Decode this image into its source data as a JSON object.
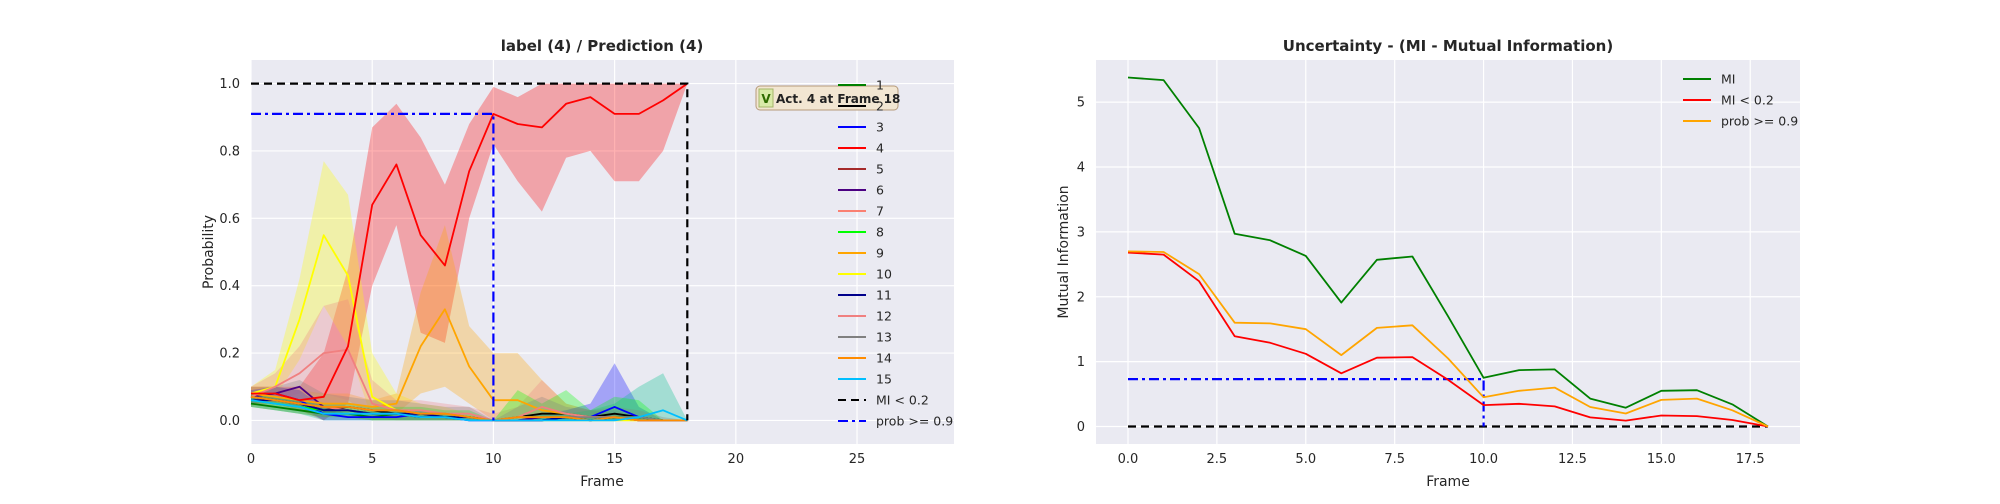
{
  "chart_data": [
    {
      "type": "line",
      "title": "label (4) / Prediction (4)",
      "xlabel": "Frame",
      "ylabel": "Probability",
      "xlim": [
        0,
        29
      ],
      "ylim": [
        -0.07,
        1.07
      ],
      "xticks": [
        0,
        5,
        10,
        15,
        20,
        25
      ],
      "yticks": [
        0.0,
        0.2,
        0.4,
        0.6,
        0.8,
        1.0
      ],
      "xtick_labels": [
        "0",
        "5",
        "10",
        "15",
        "20",
        "25"
      ],
      "ytick_labels": [
        "0.0",
        "0.2",
        "0.4",
        "0.6",
        "0.8",
        "1.0"
      ],
      "grid": true,
      "legend_position": "right",
      "x": [
        0,
        1,
        2,
        3,
        4,
        5,
        6,
        7,
        8,
        9,
        10,
        11,
        12,
        13,
        14,
        15,
        16,
        17,
        18
      ],
      "series": [
        {
          "name": "1",
          "color": "#008000",
          "values": [
            0.05,
            0.04,
            0.03,
            0.02,
            0.02,
            0.01,
            0.02,
            0.01,
            0.01,
            0.01,
            0.0,
            0.0,
            0.0,
            0.01,
            0.0,
            0.01,
            0.01,
            0.0,
            0.0
          ]
        },
        {
          "name": "2",
          "color": "#000000",
          "values": [
            0.07,
            0.06,
            0.05,
            0.03,
            0.04,
            0.03,
            0.02,
            0.02,
            0.02,
            0.01,
            0.0,
            0.01,
            0.02,
            0.02,
            0.01,
            0.02,
            0.01,
            0.0,
            0.0
          ]
        },
        {
          "name": "3",
          "color": "#0000ff",
          "values": [
            0.07,
            0.08,
            0.06,
            0.02,
            0.01,
            0.01,
            0.01,
            0.02,
            0.01,
            0.0,
            0.0,
            0.0,
            0.0,
            0.01,
            0.01,
            0.04,
            0.01,
            0.0,
            0.0
          ]
        },
        {
          "name": "4",
          "color": "#ff0000",
          "values": [
            0.08,
            0.08,
            0.06,
            0.07,
            0.22,
            0.64,
            0.76,
            0.55,
            0.46,
            0.74,
            0.91,
            0.88,
            0.87,
            0.94,
            0.96,
            0.91,
            0.91,
            0.95,
            1.0
          ]
        },
        {
          "name": "5",
          "color": "#a52a2a",
          "values": [
            0.07,
            0.06,
            0.05,
            0.03,
            0.03,
            0.02,
            0.02,
            0.02,
            0.01,
            0.01,
            0.0,
            0.0,
            0.01,
            0.01,
            0.01,
            0.01,
            0.0,
            0.0,
            0.0
          ]
        },
        {
          "name": "6",
          "color": "#4b0082",
          "values": [
            0.07,
            0.08,
            0.1,
            0.04,
            0.03,
            0.02,
            0.02,
            0.01,
            0.01,
            0.01,
            0.0,
            0.0,
            0.01,
            0.01,
            0.01,
            0.01,
            0.0,
            0.0,
            0.0
          ]
        },
        {
          "name": "7",
          "color": "#fa8072",
          "values": [
            0.06,
            0.06,
            0.05,
            0.04,
            0.03,
            0.02,
            0.02,
            0.02,
            0.02,
            0.01,
            0.0,
            0.01,
            0.01,
            0.01,
            0.01,
            0.01,
            0.0,
            0.0,
            0.0
          ]
        },
        {
          "name": "8",
          "color": "#00ff00",
          "values": [
            0.06,
            0.05,
            0.04,
            0.03,
            0.03,
            0.02,
            0.02,
            0.02,
            0.01,
            0.01,
            0.0,
            0.01,
            0.01,
            0.01,
            0.0,
            0.01,
            0.01,
            0.0,
            0.0
          ]
        },
        {
          "name": "9",
          "color": "#ffa500",
          "values": [
            0.08,
            0.07,
            0.06,
            0.05,
            0.05,
            0.04,
            0.05,
            0.22,
            0.33,
            0.16,
            0.06,
            0.06,
            0.03,
            0.02,
            0.01,
            0.01,
            0.0,
            0.0,
            0.0
          ]
        },
        {
          "name": "10",
          "color": "#ffff00",
          "values": [
            0.08,
            0.1,
            0.3,
            0.55,
            0.43,
            0.07,
            0.03,
            0.02,
            0.02,
            0.01,
            0.0,
            0.0,
            0.0,
            0.0,
            0.0,
            0.0,
            0.0,
            0.0,
            0.0
          ]
        },
        {
          "name": "11",
          "color": "#00008b",
          "values": [
            0.06,
            0.06,
            0.05,
            0.03,
            0.03,
            0.02,
            0.02,
            0.02,
            0.01,
            0.01,
            0.0,
            0.0,
            0.0,
            0.01,
            0.0,
            0.01,
            0.0,
            0.0,
            0.0
          ]
        },
        {
          "name": "12",
          "color": "#f08080",
          "values": [
            0.07,
            0.1,
            0.14,
            0.2,
            0.21,
            0.05,
            0.03,
            0.03,
            0.02,
            0.02,
            0.0,
            0.01,
            0.04,
            0.02,
            0.01,
            0.01,
            0.0,
            0.0,
            0.0
          ]
        },
        {
          "name": "13",
          "color": "#808080",
          "values": [
            0.07,
            0.06,
            0.05,
            0.04,
            0.04,
            0.03,
            0.03,
            0.02,
            0.02,
            0.01,
            0.0,
            0.01,
            0.01,
            0.01,
            0.01,
            0.01,
            0.01,
            0.0,
            0.0
          ]
        },
        {
          "name": "14",
          "color": "#ff8c00",
          "values": [
            0.07,
            0.06,
            0.05,
            0.04,
            0.04,
            0.03,
            0.03,
            0.02,
            0.02,
            0.01,
            0.0,
            0.01,
            0.01,
            0.01,
            0.0,
            0.01,
            0.0,
            0.0,
            0.0
          ]
        },
        {
          "name": "15",
          "color": "#00bfff",
          "values": [
            0.06,
            0.05,
            0.04,
            0.02,
            0.02,
            0.02,
            0.02,
            0.01,
            0.01,
            0.0,
            0.0,
            0.0,
            0.0,
            0.0,
            0.0,
            0.0,
            0.01,
            0.03,
            0.0
          ]
        }
      ],
      "bands": [
        {
          "series": "4",
          "color": "#ff0000",
          "upper": [
            0.1,
            0.1,
            0.1,
            0.2,
            0.45,
            0.87,
            0.94,
            0.84,
            0.7,
            0.88,
            0.99,
            0.96,
            1.0,
            1.0,
            1.0,
            1.0,
            1.0,
            1.0,
            1.0
          ],
          "lower": [
            0.05,
            0.05,
            0.03,
            0.0,
            0.05,
            0.4,
            0.58,
            0.26,
            0.23,
            0.6,
            0.82,
            0.71,
            0.62,
            0.78,
            0.8,
            0.71,
            0.71,
            0.8,
            1.0
          ]
        },
        {
          "series": "10",
          "color": "#ffff00",
          "upper": [
            0.1,
            0.15,
            0.42,
            0.77,
            0.67,
            0.2,
            0.08,
            0.05,
            0.04,
            0.02,
            0.0,
            0.0,
            0.0,
            0.0,
            0.0,
            0.0,
            0.0,
            0.0,
            0.0
          ],
          "lower": [
            0.06,
            0.07,
            0.18,
            0.34,
            0.22,
            0.0,
            0.0,
            0.0,
            0.0,
            0.0,
            0.0,
            0.0,
            0.0,
            0.0,
            0.0,
            0.0,
            0.0,
            0.0,
            0.0
          ]
        },
        {
          "series": "9",
          "color": "#ffa500",
          "upper": [
            0.1,
            0.1,
            0.09,
            0.08,
            0.08,
            0.06,
            0.08,
            0.38,
            0.58,
            0.28,
            0.2,
            0.2,
            0.12,
            0.05,
            0.03,
            0.02,
            0.01,
            0.0,
            0.0
          ],
          "lower": [
            0.05,
            0.05,
            0.04,
            0.03,
            0.03,
            0.02,
            0.02,
            0.08,
            0.1,
            0.05,
            0.0,
            0.0,
            0.0,
            0.0,
            0.0,
            0.0,
            0.0,
            0.0,
            0.0
          ]
        },
        {
          "series": "12",
          "color": "#f08080",
          "upper": [
            0.1,
            0.14,
            0.22,
            0.34,
            0.36,
            0.12,
            0.06,
            0.06,
            0.05,
            0.04,
            0.02,
            0.04,
            0.12,
            0.05,
            0.03,
            0.03,
            0.01,
            0.0,
            0.0
          ],
          "lower": [
            0.04,
            0.06,
            0.08,
            0.08,
            0.06,
            0.01,
            0.0,
            0.0,
            0.0,
            0.0,
            0.0,
            0.0,
            0.0,
            0.0,
            0.0,
            0.0,
            0.0,
            0.0,
            0.0
          ]
        },
        {
          "series": "3",
          "color": "#0000ff",
          "upper": [
            0.09,
            0.1,
            0.09,
            0.04,
            0.02,
            0.02,
            0.02,
            0.03,
            0.02,
            0.01,
            0.0,
            0.0,
            0.02,
            0.03,
            0.05,
            0.17,
            0.04,
            0.0,
            0.0
          ],
          "lower": [
            0.05,
            0.06,
            0.04,
            0.0,
            0.0,
            0.0,
            0.0,
            0.0,
            0.0,
            0.0,
            0.0,
            0.0,
            0.0,
            0.0,
            0.0,
            0.0,
            0.0,
            0.0,
            0.0
          ]
        },
        {
          "series": "15",
          "color": "#00c08a",
          "upper": [
            0.08,
            0.07,
            0.06,
            0.04,
            0.03,
            0.03,
            0.03,
            0.02,
            0.02,
            0.01,
            0.0,
            0.0,
            0.02,
            0.02,
            0.03,
            0.05,
            0.1,
            0.14,
            0.0
          ],
          "lower": [
            0.04,
            0.03,
            0.02,
            0.0,
            0.0,
            0.0,
            0.0,
            0.0,
            0.0,
            0.0,
            0.0,
            0.0,
            0.0,
            0.0,
            0.0,
            0.0,
            0.0,
            0.0,
            0.0
          ]
        },
        {
          "series": "8",
          "color": "#00ff00",
          "upper": [
            0.08,
            0.07,
            0.06,
            0.05,
            0.05,
            0.04,
            0.04,
            0.04,
            0.03,
            0.03,
            0.0,
            0.09,
            0.05,
            0.09,
            0.03,
            0.07,
            0.06,
            0.0,
            0.0
          ],
          "lower": [
            0.04,
            0.03,
            0.02,
            0.01,
            0.01,
            0.0,
            0.0,
            0.0,
            0.0,
            0.0,
            0.0,
            0.0,
            0.0,
            0.0,
            0.0,
            0.0,
            0.0,
            0.0,
            0.0
          ]
        },
        {
          "series": "13",
          "color": "#808080",
          "upper": [
            0.1,
            0.1,
            0.12,
            0.08,
            0.07,
            0.06,
            0.06,
            0.05,
            0.04,
            0.04,
            0.0,
            0.04,
            0.07,
            0.04,
            0.03,
            0.04,
            0.03,
            0.01,
            0.0
          ],
          "lower": [
            0.04,
            0.03,
            0.02,
            0.01,
            0.01,
            0.0,
            0.0,
            0.0,
            0.0,
            0.0,
            0.0,
            0.0,
            0.0,
            0.0,
            0.0,
            0.0,
            0.0,
            0.0,
            0.0
          ]
        }
      ],
      "reference_lines": [
        {
          "name": "MI < 0.2",
          "color": "#000000",
          "style": "dashed",
          "points": [
            [
              0,
              1.0
            ],
            [
              18,
              1.0
            ],
            [
              18,
              0.0
            ]
          ]
        },
        {
          "name": "prob >= 0.9",
          "color": "#0000ff",
          "style": "dashdot",
          "points": [
            [
              0,
              0.91
            ],
            [
              10,
              0.91
            ],
            [
              10,
              0.0
            ]
          ]
        }
      ],
      "annotation": {
        "badge": "V",
        "text": "Act. 4 at Frame 18"
      }
    },
    {
      "type": "line",
      "title": "Uncertainty - (MI - Mutual Information)",
      "xlabel": "Frame",
      "ylabel": "Mutual Information",
      "xlim": [
        -0.9,
        18.9
      ],
      "ylim": [
        -0.27,
        5.65
      ],
      "xticks": [
        0.0,
        2.5,
        5.0,
        7.5,
        10.0,
        12.5,
        15.0,
        17.5
      ],
      "yticks": [
        0,
        1,
        2,
        3,
        4,
        5
      ],
      "xtick_labels": [
        "0.0",
        "2.5",
        "5.0",
        "7.5",
        "10.0",
        "12.5",
        "15.0",
        "17.5"
      ],
      "ytick_labels": [
        "0",
        "1",
        "2",
        "3",
        "4",
        "5"
      ],
      "grid": true,
      "legend_position": "top-right",
      "x": [
        0,
        1,
        2,
        3,
        4,
        5,
        6,
        7,
        8,
        9,
        10,
        11,
        12,
        13,
        14,
        15,
        16,
        17,
        18
      ],
      "series": [
        {
          "name": "MI",
          "color": "#008000",
          "values": [
            5.38,
            5.34,
            4.6,
            2.97,
            2.87,
            2.63,
            1.91,
            2.57,
            2.62,
            1.7,
            0.75,
            0.87,
            0.88,
            0.43,
            0.29,
            0.55,
            0.56,
            0.34,
            0.0
          ]
        },
        {
          "name": "MI < 0.2",
          "color": "#ff0000",
          "values": [
            2.68,
            2.65,
            2.24,
            1.39,
            1.29,
            1.12,
            0.82,
            1.06,
            1.07,
            0.72,
            0.33,
            0.35,
            0.31,
            0.14,
            0.09,
            0.17,
            0.16,
            0.1,
            0.0
          ]
        },
        {
          "name": "prob >= 0.9",
          "color": "#ffa500",
          "values": [
            2.7,
            2.69,
            2.35,
            1.6,
            1.59,
            1.5,
            1.1,
            1.52,
            1.56,
            1.05,
            0.45,
            0.55,
            0.6,
            0.3,
            0.2,
            0.41,
            0.43,
            0.25,
            0.0
          ]
        }
      ],
      "reference_lines": [
        {
          "color": "#000000",
          "style": "dashed",
          "points": [
            [
              0,
              0.0
            ],
            [
              18,
              0.0
            ]
          ]
        },
        {
          "color": "#0000ff",
          "style": "dashdot",
          "points": [
            [
              0,
              0.73
            ],
            [
              10,
              0.73
            ],
            [
              10,
              0.0
            ]
          ]
        }
      ]
    }
  ]
}
